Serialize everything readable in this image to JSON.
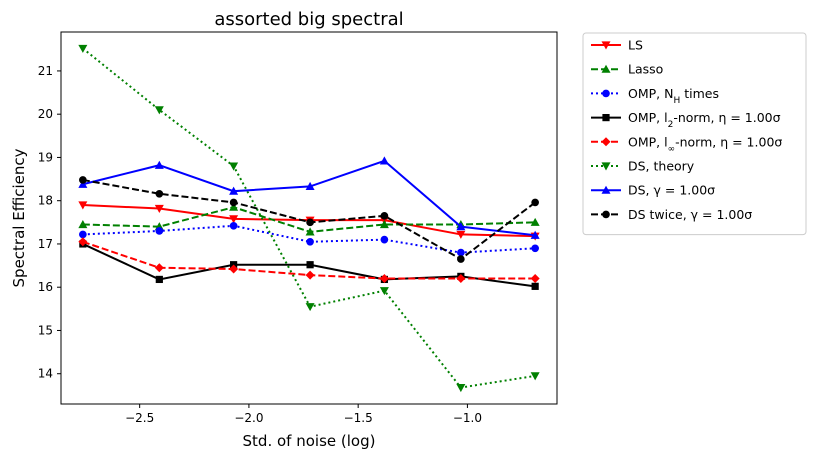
{
  "chart_data": {
    "type": "line",
    "title": "assorted big spectral",
    "xlabel": "Std. of noise (log)",
    "ylabel": "Spectral Efficiency",
    "x": [
      -2.76,
      -2.41,
      -2.07,
      -1.72,
      -1.38,
      -1.03,
      -0.69
    ],
    "xlim": [
      -2.86,
      -0.59
    ],
    "ylim": [
      13.3,
      21.9
    ],
    "xticks": [
      -2.5,
      -2.0,
      -1.5,
      -1.0
    ],
    "xtick_labels": [
      "−2.5",
      "−2.0",
      "−1.5",
      "−1.0"
    ],
    "yticks": [
      14,
      15,
      16,
      17,
      18,
      19,
      20,
      21
    ],
    "ytick_labels": [
      "14",
      "15",
      "16",
      "17",
      "18",
      "19",
      "20",
      "21"
    ],
    "grid": false,
    "legend_placement": "outside-right",
    "series": [
      {
        "name": "LS",
        "color": "#ff0000",
        "dash": "solid",
        "marker": "triangle-down",
        "values": [
          17.9,
          17.82,
          17.58,
          17.55,
          17.55,
          17.22,
          17.18
        ]
      },
      {
        "name": "Lasso",
        "color": "#008000",
        "dash": "dashed",
        "marker": "triangle-up",
        "values": [
          17.45,
          17.4,
          17.85,
          17.28,
          17.45,
          17.45,
          17.5
        ]
      },
      {
        "name": "OMP, N_H times",
        "color": "#0000ff",
        "dash": "dotted",
        "marker": "circle",
        "values": [
          17.22,
          17.3,
          17.42,
          17.05,
          17.1,
          16.8,
          16.9
        ]
      },
      {
        "name": "OMP, l_2-norm, η = 1.00σ",
        "color": "#000000",
        "dash": "solid",
        "marker": "square",
        "values": [
          17.0,
          16.18,
          16.52,
          16.52,
          16.18,
          16.25,
          16.02
        ]
      },
      {
        "name": "OMP, l_∞-norm, η = 1.00σ",
        "color": "#ff0000",
        "dash": "dashed",
        "marker": "diamond",
        "values": [
          17.05,
          16.45,
          16.42,
          16.28,
          16.2,
          16.2,
          16.2
        ]
      },
      {
        "name": "DS, theory",
        "color": "#008000",
        "dash": "dotted",
        "marker": "triangle-down",
        "values": [
          21.52,
          20.1,
          18.8,
          15.55,
          15.92,
          13.68,
          13.95
        ]
      },
      {
        "name": "DS, γ = 1.00σ",
        "color": "#0000ff",
        "dash": "solid",
        "marker": "triangle-up",
        "values": [
          18.38,
          18.82,
          18.22,
          18.33,
          18.92,
          17.4,
          17.2
        ]
      },
      {
        "name": "DS twice, γ = 1.00σ",
        "color": "#000000",
        "dash": "dashed",
        "marker": "circle",
        "values": [
          18.48,
          18.16,
          17.96,
          17.5,
          17.65,
          16.65,
          17.96
        ]
      }
    ]
  }
}
